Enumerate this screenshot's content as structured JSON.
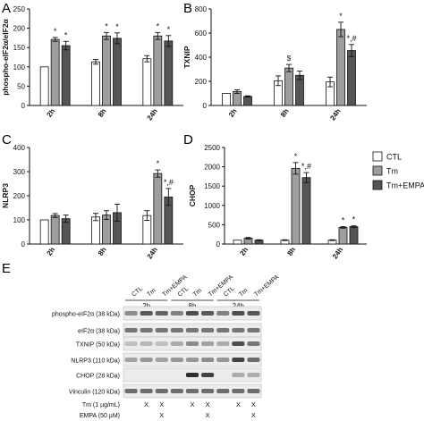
{
  "figure": {
    "colors": {
      "CTL": "#ffffff",
      "Tm": "#9e9e9e",
      "Tm+EMPA": "#555555",
      "axis": "#111111"
    }
  },
  "legend": {
    "entries": [
      {
        "label": "CTL",
        "color": "#ffffff"
      },
      {
        "label": "Tm",
        "color": "#9e9e9e"
      },
      {
        "label": "Tm+EMPA",
        "color": "#555555"
      }
    ]
  },
  "chart_data": [
    {
      "panel": "A",
      "type": "bar",
      "ylabel": "phospho-eIF2α/eIF2α",
      "categories": [
        "2h",
        "8h",
        "24h"
      ],
      "ylim": [
        0,
        250
      ],
      "yticks": [
        0,
        50,
        100,
        150,
        200,
        250
      ],
      "series": [
        {
          "name": "CTL",
          "values": [
            100,
            113,
            121
          ],
          "errors": [
            0,
            6,
            8
          ]
        },
        {
          "name": "Tm",
          "values": [
            171,
            180,
            180
          ],
          "errors": [
            5,
            9,
            9
          ]
        },
        {
          "name": "Tm+EMPA",
          "values": [
            155,
            174,
            167
          ],
          "errors": [
            11,
            14,
            14
          ]
        }
      ],
      "annotations": [
        {
          "category": "2h",
          "series": "Tm",
          "text": "*"
        },
        {
          "category": "2h",
          "series": "Tm+EMPA",
          "text": "*"
        },
        {
          "category": "8h",
          "series": "Tm",
          "text": "*"
        },
        {
          "category": "8h",
          "series": "Tm+EMPA",
          "text": "*"
        },
        {
          "category": "24h",
          "series": "Tm",
          "text": "*"
        },
        {
          "category": "24h",
          "series": "Tm+EMPA",
          "text": "*"
        }
      ]
    },
    {
      "panel": "B",
      "type": "bar",
      "ylabel": "TXNIP",
      "categories": [
        "2h",
        "8h",
        "24h"
      ],
      "ylim": [
        0,
        800
      ],
      "yticks": [
        0,
        200,
        400,
        600,
        800
      ],
      "series": [
        {
          "name": "CTL",
          "values": [
            100,
            205,
            195
          ],
          "errors": [
            0,
            40,
            40
          ]
        },
        {
          "name": "Tm",
          "values": [
            115,
            310,
            630
          ],
          "errors": [
            15,
            30,
            60
          ]
        },
        {
          "name": "Tm+EMPA",
          "values": [
            75,
            250,
            455
          ],
          "errors": [
            5,
            35,
            50
          ]
        }
      ],
      "annotations": [
        {
          "category": "8h",
          "series": "Tm",
          "text": "$"
        },
        {
          "category": "24h",
          "series": "Tm",
          "text": "*"
        },
        {
          "category": "24h",
          "series": "Tm+EMPA",
          "text": "*,#"
        }
      ]
    },
    {
      "panel": "C",
      "type": "bar",
      "ylabel": "NLRP3",
      "categories": [
        "2h",
        "8h",
        "24h"
      ],
      "ylim": [
        0,
        400
      ],
      "yticks": [
        0,
        100,
        200,
        300,
        400
      ],
      "series": [
        {
          "name": "CTL",
          "values": [
            100,
            112,
            118
          ],
          "errors": [
            0,
            15,
            20
          ]
        },
        {
          "name": "Tm",
          "values": [
            118,
            120,
            292
          ],
          "errors": [
            8,
            18,
            15
          ]
        },
        {
          "name": "Tm+EMPA",
          "values": [
            105,
            130,
            195
          ],
          "errors": [
            15,
            35,
            35
          ]
        }
      ],
      "annotations": [
        {
          "category": "24h",
          "series": "Tm",
          "text": "*"
        },
        {
          "category": "24h",
          "series": "Tm+EMPA",
          "text": "*,#"
        }
      ]
    },
    {
      "panel": "D",
      "type": "bar",
      "ylabel": "CHOP",
      "categories": [
        "2h",
        "8h",
        "24h"
      ],
      "ylim": [
        0,
        2500
      ],
      "yticks": [
        0,
        500,
        1000,
        1500,
        2000,
        2500
      ],
      "series": [
        {
          "name": "CTL",
          "values": [
            100,
            100,
            100
          ],
          "errors": [
            0,
            10,
            10
          ]
        },
        {
          "name": "Tm",
          "values": [
            150,
            1960,
            430
          ],
          "errors": [
            20,
            150,
            20
          ]
        },
        {
          "name": "Tm+EMPA",
          "values": [
            100,
            1720,
            450
          ],
          "errors": [
            10,
            130,
            20
          ]
        }
      ],
      "annotations": [
        {
          "category": "8h",
          "series": "Tm",
          "text": "*"
        },
        {
          "category": "8h",
          "series": "Tm+EMPA",
          "text": "*,#"
        },
        {
          "category": "24h",
          "series": "Tm",
          "text": "*"
        },
        {
          "category": "24h",
          "series": "Tm+EMPA",
          "text": "*"
        }
      ]
    }
  ],
  "blot": {
    "panel": "E",
    "lane_headers": [
      "CTL",
      "Tm",
      "Tm+EMPA",
      "CTL",
      "Tm",
      "Tm+EMPA",
      "CTL",
      "Tm",
      "Tm+EMPA"
    ],
    "timepoints": [
      "2h",
      "8h",
      "24h"
    ],
    "rows": [
      {
        "label": "phospho-eIF2α (38 kDa)",
        "intensity": [
          0.45,
          0.7,
          0.65,
          0.5,
          0.75,
          0.7,
          0.5,
          0.75,
          0.7
        ]
      },
      {
        "label": "eIF2α (38 kDa)",
        "intensity": [
          0.55,
          0.55,
          0.55,
          0.55,
          0.55,
          0.55,
          0.55,
          0.55,
          0.55
        ]
      },
      {
        "label": "TXNIP (50 kDa)",
        "intensity": [
          0.2,
          0.25,
          0.2,
          0.3,
          0.45,
          0.35,
          0.3,
          0.75,
          0.55
        ]
      },
      {
        "label": "NLRP3 (110 kDa)",
        "intensity": [
          0.35,
          0.4,
          0.35,
          0.4,
          0.4,
          0.45,
          0.4,
          0.8,
          0.6
        ]
      },
      {
        "label": "CHOP (28 kDa)",
        "intensity": [
          0.0,
          0.0,
          0.0,
          0.0,
          0.9,
          0.8,
          0.0,
          0.3,
          0.3
        ]
      },
      {
        "label": "Vinculin (120 kDa)",
        "intensity": [
          0.6,
          0.6,
          0.6,
          0.6,
          0.6,
          0.6,
          0.6,
          0.6,
          0.6
        ]
      }
    ],
    "treatments": [
      {
        "label": "Tm (1 µg/mL)",
        "marks": [
          "",
          "X",
          "X",
          "",
          "X",
          "X",
          "",
          "X",
          "X"
        ]
      },
      {
        "label": "EMPA (50 µM)",
        "marks": [
          "",
          "",
          "X",
          "",
          "",
          "X",
          "",
          "",
          "X"
        ]
      }
    ]
  }
}
